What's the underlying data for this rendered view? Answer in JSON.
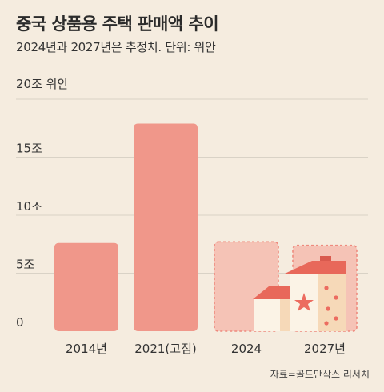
{
  "header": {
    "title": "중국 상품용 주택 판매액 추이",
    "subtitle": "2024년과 2027년은 추정치. 단위: 위안"
  },
  "source": "자료=골드만삭스 리서치",
  "chart_data": {
    "type": "bar",
    "title": "중국 상품용 주택 판매액 추이",
    "subtitle": "2024년과 2027년은 추정치. 단위: 위안",
    "categories": [
      "2014년",
      "2021(고점)",
      "2024",
      "2027년"
    ],
    "values": [
      7.6,
      17.9,
      7.7,
      7.4
    ],
    "estimated": [
      false,
      false,
      true,
      true
    ],
    "ylim": [
      0,
      20
    ],
    "yticks": [
      {
        "value": 0,
        "label": "0"
      },
      {
        "value": 5,
        "label": "5조"
      },
      {
        "value": 10,
        "label": "10조"
      },
      {
        "value": 15,
        "label": "15조"
      },
      {
        "value": 20,
        "label": "20조 위안"
      }
    ],
    "grid": true,
    "colors": {
      "actual": "#f0978a",
      "estimate_fill": "#f5c3b6",
      "estimate_border": "#ee8a7e",
      "gridline": "#d9d2c6",
      "background": "#f5ecdf"
    }
  }
}
